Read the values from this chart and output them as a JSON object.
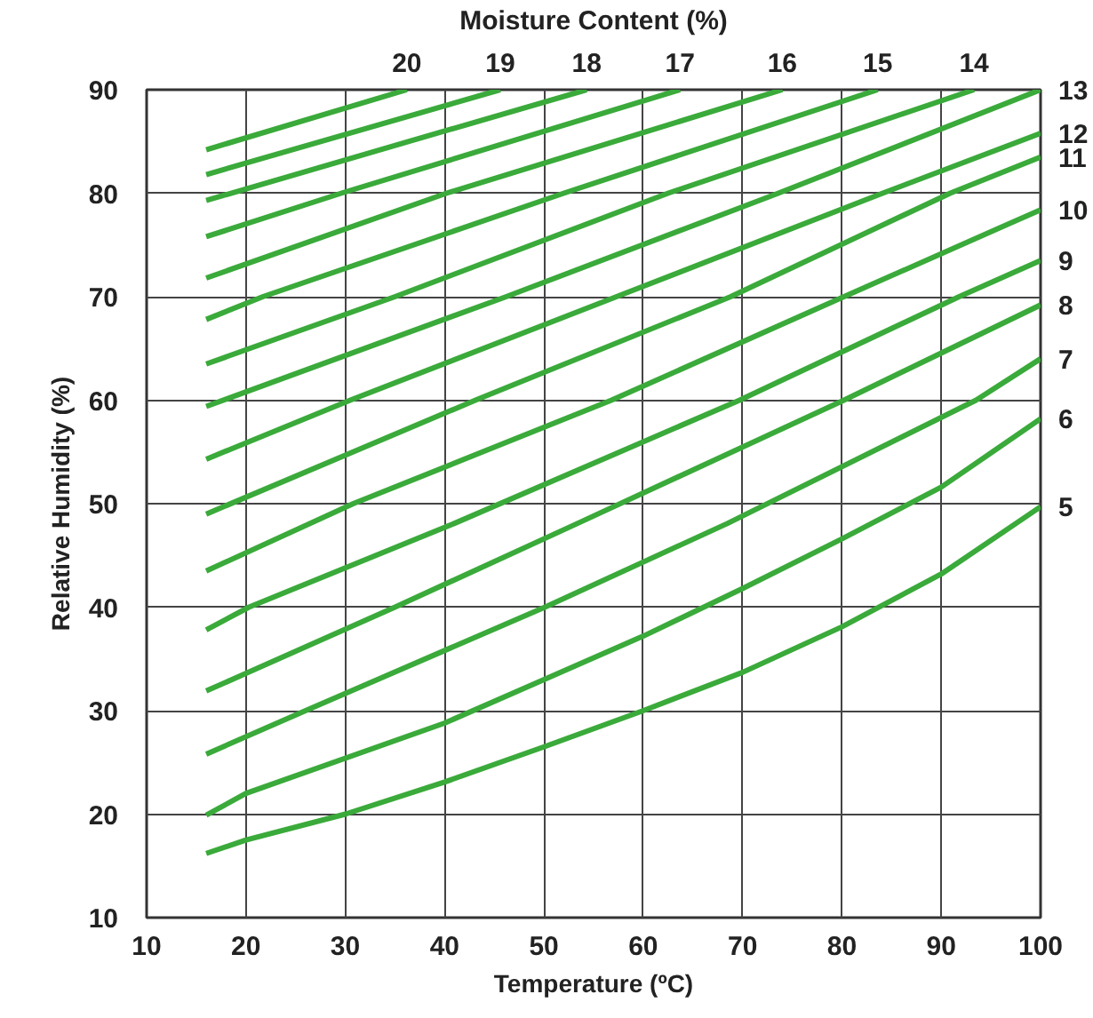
{
  "chart_data": {
    "type": "line",
    "xlabel": "Temperature (ºC)",
    "ylabel": "Relative Humidity (%)",
    "legend_title": "Moisture Content (%)",
    "xlim": [
      10,
      100
    ],
    "ylim": [
      10,
      90
    ],
    "xticks": [
      10,
      20,
      30,
      40,
      50,
      60,
      70,
      80,
      90,
      100
    ],
    "yticks": [
      10,
      20,
      30,
      40,
      50,
      60,
      70,
      80,
      90
    ],
    "grid": true,
    "marker": "none",
    "line_style": "solid",
    "series": [
      {
        "name": "20",
        "color": "#3aaa3a",
        "x": [
          16,
          36.2
        ],
        "values": [
          84.2,
          90
        ]
      },
      {
        "name": "19",
        "color": "#3aaa3a",
        "x": [
          16,
          45.6
        ],
        "values": [
          81.8,
          90
        ]
      },
      {
        "name": "18",
        "color": "#3aaa3a",
        "x": [
          16,
          54.3
        ],
        "values": [
          79.3,
          90
        ]
      },
      {
        "name": "17",
        "color": "#3aaa3a",
        "x": [
          16,
          29.6,
          63.7
        ],
        "values": [
          75.8,
          80,
          90
        ]
      },
      {
        "name": "16",
        "color": "#3aaa3a",
        "x": [
          16,
          40.2,
          74
        ],
        "values": [
          71.8,
          80,
          90
        ]
      },
      {
        "name": "15",
        "color": "#3aaa3a",
        "x": [
          16,
          21.7,
          52,
          83.6
        ],
        "values": [
          67.8,
          70,
          80,
          90
        ]
      },
      {
        "name": "14",
        "color": "#3aaa3a",
        "x": [
          16,
          35,
          62.5,
          93.3
        ],
        "values": [
          63.5,
          70,
          80,
          90
        ]
      },
      {
        "name": "13",
        "color": "#3aaa3a",
        "x": [
          16,
          46.2,
          73.6,
          100
        ],
        "values": [
          59.4,
          70,
          80,
          90
        ]
      },
      {
        "name": "12",
        "color": "#3aaa3a",
        "x": [
          16,
          30.5,
          57.3,
          84.1,
          100
        ],
        "values": [
          54.3,
          60,
          70,
          80,
          85.8
        ]
      },
      {
        "name": "11",
        "color": "#3aaa3a",
        "x": [
          16,
          43.1,
          68.8,
          90.9,
          100
        ],
        "values": [
          49,
          60,
          70,
          80,
          83.5
        ]
      },
      {
        "name": "10",
        "color": "#3aaa3a",
        "x": [
          16,
          30.8,
          56.8,
          80.2,
          100
        ],
        "values": [
          43.5,
          50,
          60,
          70,
          78.4
        ]
      },
      {
        "name": "9",
        "color": "#3aaa3a",
        "x": [
          16,
          20.3,
          41,
          69.7,
          91.8,
          100
        ],
        "values": [
          37.8,
          40,
          48.1,
          60,
          70,
          73.5
        ]
      },
      {
        "name": "8",
        "color": "#3aaa3a",
        "x": [
          16,
          35,
          53.4,
          80.2,
          100
        ],
        "values": [
          31.9,
          40,
          48.1,
          60,
          69.2
        ]
      },
      {
        "name": "7",
        "color": "#3aaa3a",
        "x": [
          16,
          26,
          50.1,
          68.5,
          93.5,
          100
        ],
        "values": [
          25.8,
          30,
          40,
          48.1,
          60,
          64
        ]
      },
      {
        "name": "6",
        "color": "#3aaa3a",
        "x": [
          16,
          20,
          40,
          60,
          70,
          80,
          90,
          100
        ],
        "values": [
          19.9,
          22,
          28.8,
          37.2,
          41.8,
          46.6,
          51.6,
          58.2
        ]
      },
      {
        "name": "5",
        "color": "#3aaa3a",
        "x": [
          16,
          20,
          30,
          40,
          50,
          60,
          70,
          80,
          90,
          100
        ],
        "values": [
          16.2,
          17.5,
          20,
          23.1,
          26.5,
          30,
          33.7,
          38.1,
          43.2,
          49.7
        ]
      }
    ]
  }
}
